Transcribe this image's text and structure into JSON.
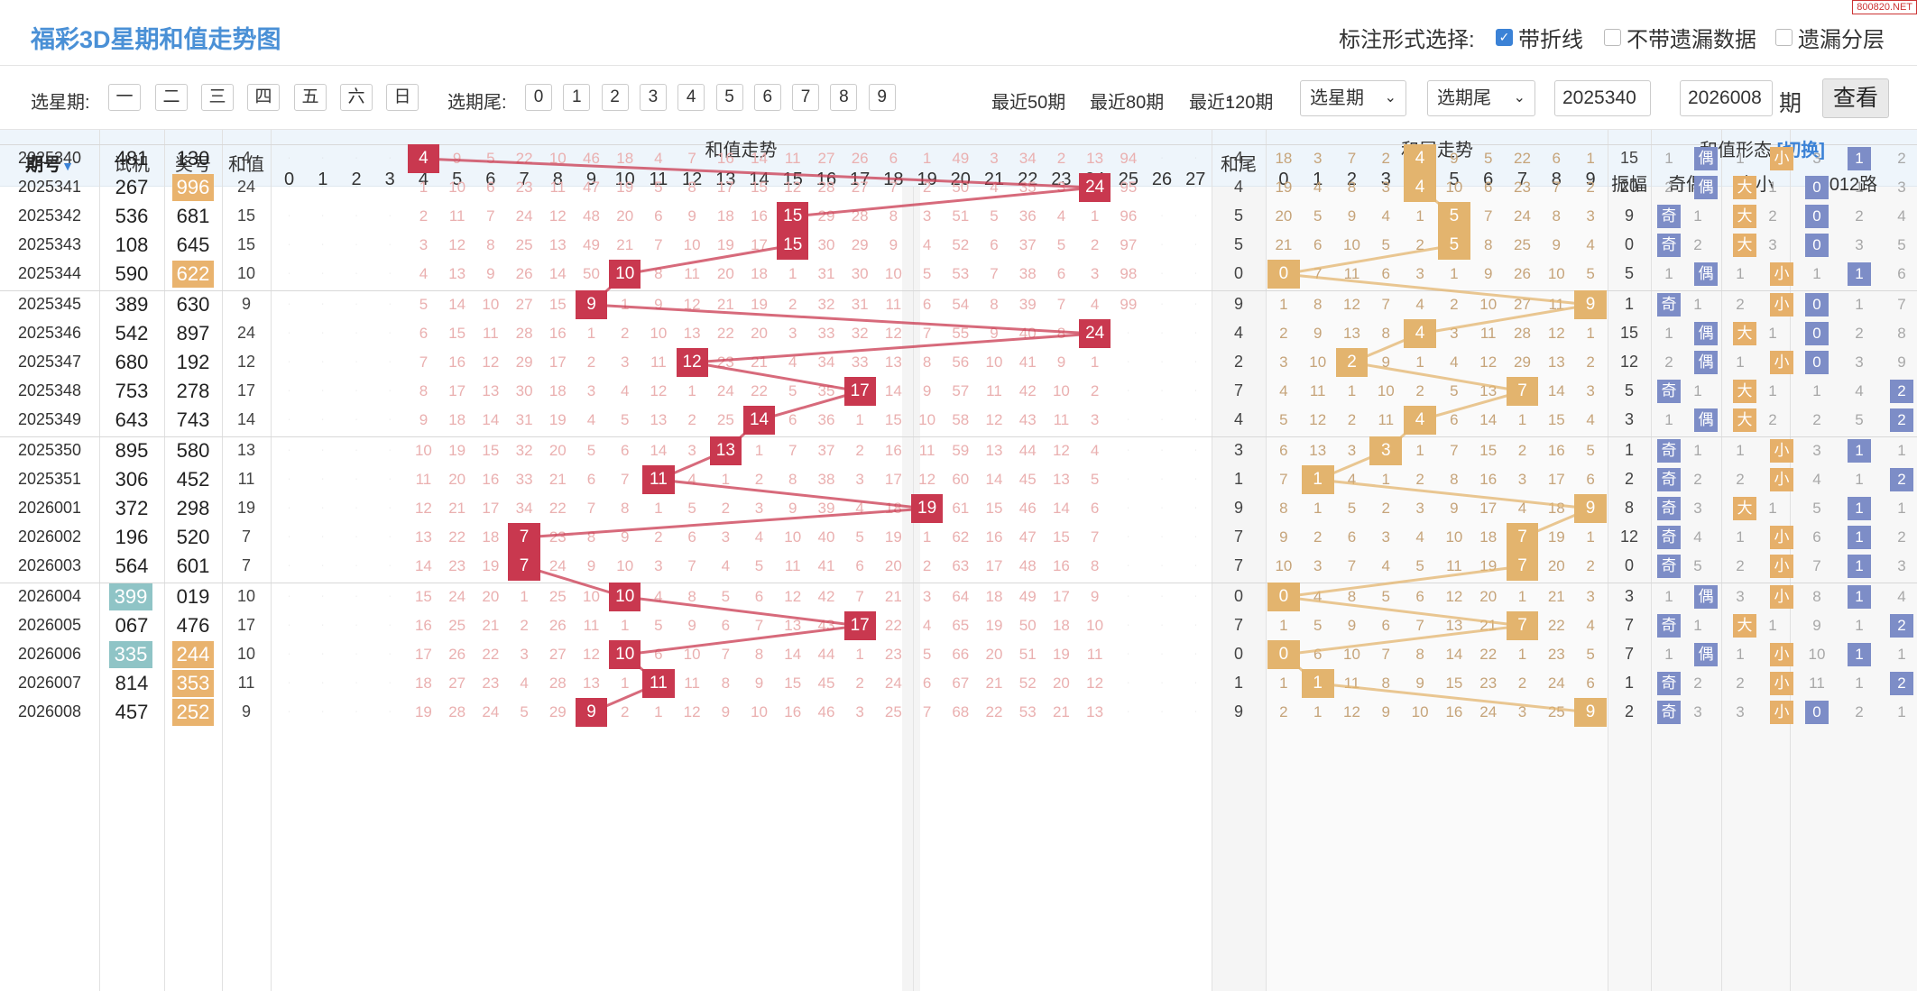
{
  "header": {
    "title": "福彩3D星期和值走势图",
    "option_label": "标注形式选择:",
    "options": [
      {
        "label": "带折线",
        "checked": true
      },
      {
        "label": "不带遗漏数据",
        "checked": false
      },
      {
        "label": "遗漏分层",
        "checked": false
      }
    ],
    "badge": "800820.NET"
  },
  "toolbar": {
    "week_label": "选星期:",
    "weekdays": [
      "一",
      "二",
      "三",
      "四",
      "五",
      "六",
      "日"
    ],
    "tail_label": "选期尾:",
    "tails": [
      "0",
      "1",
      "2",
      "3",
      "4",
      "5",
      "6",
      "7",
      "8",
      "9"
    ],
    "recent": [
      "最近50期",
      "最近80期",
      "最近120期"
    ],
    "select_week": "选星期",
    "select_tail": "选期尾",
    "start": "2025340",
    "dash": "-",
    "end": "2026008",
    "period": "期",
    "query": "查看"
  },
  "columns": {
    "period": "期号",
    "trial": "试机",
    "draw": "奖号",
    "sum": "和值",
    "sum_trend": "和值走势",
    "tail": "和尾",
    "tail_trend": "和尾走势",
    "form": "和值形态",
    "switch": "[切换]",
    "amp": "振幅",
    "odd_even": "奇偶",
    "big_small": "大小",
    "route": "012路",
    "sum_labels": [
      "0",
      "1",
      "2",
      "3",
      "4",
      "5",
      "6",
      "7",
      "8",
      "9",
      "10",
      "11",
      "12",
      "13",
      "14",
      "15",
      "16",
      "17",
      "18",
      "19",
      "20",
      "21",
      "22",
      "23",
      "24",
      "25",
      "26",
      "27"
    ],
    "tail_labels": [
      "0",
      "1",
      "2",
      "3",
      "4",
      "5",
      "6",
      "7",
      "8",
      "9"
    ]
  },
  "colors": {
    "red": "#c9384f",
    "orange": "#e3b46e",
    "blue": "#7d8dc7",
    "teal": "#8fc4c6"
  },
  "rows": [
    {
      "period": "2025340",
      "trial": "481",
      "draw": "130",
      "sum": 4,
      "tail": 4,
      "amp": 15,
      "oe": "偶",
      "oe_miss": 1,
      "bs": "小",
      "bs_miss": 1,
      "route": 1,
      "route_miss": [
        3,
        null,
        2
      ],
      "trial_hl": "",
      "draw_hl": "",
      "sum_miss": [
        " ",
        " ",
        " ",
        " ",
        null,
        "9",
        "5",
        "22",
        "10",
        "46",
        "18",
        "4",
        "7",
        "16",
        "14",
        "11",
        "27",
        "26",
        "6",
        "1",
        "49",
        "3",
        "34",
        "2",
        "13",
        "94",
        " ",
        " "
      ],
      "tail_miss": [
        "18",
        "3",
        "7",
        "2",
        null,
        "9",
        "5",
        "22",
        "6",
        "1"
      ]
    },
    {
      "period": "2025341",
      "trial": "267",
      "draw": "996",
      "sum": 24,
      "tail": 4,
      "amp": 20,
      "oe": "偶",
      "oe_miss": 2,
      "bs": "大",
      "bs_miss": 1,
      "route": 0,
      "route_miss": [
        null,
        1,
        3
      ],
      "trial_hl": "",
      "draw_hl": "org",
      "sum_miss": [
        " ",
        " ",
        " ",
        " ",
        "1",
        "10",
        "6",
        "23",
        "11",
        "47",
        "19",
        "5",
        "8",
        "17",
        "15",
        "12",
        "28",
        "27",
        "7",
        "2",
        "50",
        "4",
        "35",
        "3",
        null,
        "95",
        " ",
        " "
      ],
      "tail_miss": [
        "19",
        "4",
        "8",
        "3",
        null,
        "10",
        "6",
        "23",
        "7",
        "2"
      ]
    },
    {
      "period": "2025342",
      "trial": "536",
      "draw": "681",
      "sum": 15,
      "tail": 5,
      "amp": 9,
      "oe": "奇",
      "oe_miss": 1,
      "bs": "大",
      "bs_miss": 2,
      "route": 0,
      "route_miss": [
        null,
        2,
        4
      ],
      "trial_hl": "",
      "draw_hl": "",
      "sum_miss": [
        " ",
        " ",
        " ",
        " ",
        "2",
        "11",
        "7",
        "24",
        "12",
        "48",
        "20",
        "6",
        "9",
        "18",
        "16",
        null,
        "29",
        "28",
        "8",
        "3",
        "51",
        "5",
        "36",
        "4",
        "1",
        "96",
        " ",
        " "
      ],
      "tail_miss": [
        "20",
        "5",
        "9",
        "4",
        "1",
        null,
        "7",
        "24",
        "8",
        "3"
      ]
    },
    {
      "period": "2025343",
      "trial": "108",
      "draw": "645",
      "sum": 15,
      "tail": 5,
      "amp": 0,
      "oe": "奇",
      "oe_miss": 2,
      "bs": "大",
      "bs_miss": 3,
      "route": 0,
      "route_miss": [
        null,
        3,
        5
      ],
      "trial_hl": "",
      "draw_hl": "",
      "sum_miss": [
        " ",
        " ",
        " ",
        " ",
        "3",
        "12",
        "8",
        "25",
        "13",
        "49",
        "21",
        "7",
        "10",
        "19",
        "17",
        null,
        "30",
        "29",
        "9",
        "4",
        "52",
        "6",
        "37",
        "5",
        "2",
        "97",
        " ",
        " "
      ],
      "tail_miss": [
        "21",
        "6",
        "10",
        "5",
        "2",
        null,
        "8",
        "25",
        "9",
        "4"
      ]
    },
    {
      "period": "2025344",
      "trial": "590",
      "draw": "622",
      "sum": 10,
      "tail": 0,
      "amp": 5,
      "oe": "偶",
      "oe_miss": 1,
      "bs": "小",
      "bs_miss": 1,
      "route": 1,
      "route_miss": [
        1,
        null,
        6
      ],
      "trial_hl": "",
      "draw_hl": "org",
      "sum_miss": [
        " ",
        " ",
        " ",
        " ",
        "4",
        "13",
        "9",
        "26",
        "14",
        "50",
        null,
        "8",
        "11",
        "20",
        "18",
        "1",
        "31",
        "30",
        "10",
        "5",
        "53",
        "7",
        "38",
        "6",
        "3",
        "98",
        " ",
        " "
      ],
      "tail_miss": [
        null,
        "7",
        "11",
        "6",
        "3",
        "1",
        "9",
        "26",
        "10",
        "5"
      ]
    },
    {
      "period": "2025345",
      "trial": "389",
      "draw": "630",
      "sum": 9,
      "tail": 9,
      "amp": 1,
      "oe": "奇",
      "oe_miss": 1,
      "bs": "小",
      "bs_miss": 2,
      "route": 0,
      "route_miss": [
        null,
        1,
        7
      ],
      "trial_hl": "",
      "draw_hl": "",
      "sum_miss": [
        " ",
        " ",
        " ",
        " ",
        "5",
        "14",
        "10",
        "27",
        "15",
        null,
        "1",
        "9",
        "12",
        "21",
        "19",
        "2",
        "32",
        "31",
        "11",
        "6",
        "54",
        "8",
        "39",
        "7",
        "4",
        "99",
        " ",
        " "
      ],
      "tail_miss": [
        "1",
        "8",
        "12",
        "7",
        "4",
        "2",
        "10",
        "27",
        "11",
        null
      ]
    },
    {
      "period": "2025346",
      "trial": "542",
      "draw": "897",
      "sum": 24,
      "tail": 4,
      "amp": 15,
      "oe": "偶",
      "oe_miss": 1,
      "bs": "大",
      "bs_miss": 1,
      "route": 0,
      "route_miss": [
        null,
        2,
        8
      ],
      "trial_hl": "",
      "draw_hl": "",
      "sum_miss": [
        " ",
        " ",
        " ",
        " ",
        "6",
        "15",
        "11",
        "28",
        "16",
        "1",
        "2",
        "10",
        "13",
        "22",
        "20",
        "3",
        "33",
        "32",
        "12",
        "7",
        "55",
        "9",
        "40",
        "8",
        null,
        " ",
        " ",
        " "
      ],
      "tail_miss": [
        "2",
        "9",
        "13",
        "8",
        null,
        "3",
        "11",
        "28",
        "12",
        "1"
      ]
    },
    {
      "period": "2025347",
      "trial": "680",
      "draw": "192",
      "sum": 12,
      "tail": 2,
      "amp": 12,
      "oe": "偶",
      "oe_miss": 2,
      "bs": "小",
      "bs_miss": 1,
      "route": 0,
      "route_miss": [
        null,
        3,
        9
      ],
      "trial_hl": "",
      "draw_hl": "",
      "sum_miss": [
        " ",
        " ",
        " ",
        " ",
        "7",
        "16",
        "12",
        "29",
        "17",
        "2",
        "3",
        "11",
        null,
        "23",
        "21",
        "4",
        "34",
        "33",
        "13",
        "8",
        "56",
        "10",
        "41",
        "9",
        "1",
        " ",
        " ",
        " "
      ],
      "tail_miss": [
        "3",
        "10",
        null,
        "9",
        "1",
        "4",
        "12",
        "29",
        "13",
        "2"
      ]
    },
    {
      "period": "2025348",
      "trial": "753",
      "draw": "278",
      "sum": 17,
      "tail": 7,
      "amp": 5,
      "oe": "奇",
      "oe_miss": 1,
      "bs": "大",
      "bs_miss": 1,
      "route": 2,
      "route_miss": [
        1,
        4,
        null
      ],
      "trial_hl": "",
      "draw_hl": "",
      "sum_miss": [
        " ",
        " ",
        " ",
        " ",
        "8",
        "17",
        "13",
        "30",
        "18",
        "3",
        "4",
        "12",
        "1",
        "24",
        "22",
        "5",
        "35",
        null,
        "14",
        "9",
        "57",
        "11",
        "42",
        "10",
        "2",
        " ",
        " ",
        " "
      ],
      "tail_miss": [
        "4",
        "11",
        "1",
        "10",
        "2",
        "5",
        "13",
        null,
        "14",
        "3"
      ]
    },
    {
      "period": "2025349",
      "trial": "643",
      "draw": "743",
      "sum": 14,
      "tail": 4,
      "amp": 3,
      "oe": "偶",
      "oe_miss": 1,
      "bs": "大",
      "bs_miss": 2,
      "route": 2,
      "route_miss": [
        2,
        5,
        null
      ],
      "trial_hl": "",
      "draw_hl": "",
      "sum_miss": [
        " ",
        " ",
        " ",
        " ",
        "9",
        "18",
        "14",
        "31",
        "19",
        "4",
        "5",
        "13",
        "2",
        "25",
        null,
        "6",
        "36",
        "1",
        "15",
        "10",
        "58",
        "12",
        "43",
        "11",
        "3",
        " ",
        " ",
        " "
      ],
      "tail_miss": [
        "5",
        "12",
        "2",
        "11",
        null,
        "6",
        "14",
        "1",
        "15",
        "4"
      ]
    },
    {
      "period": "2025350",
      "trial": "895",
      "draw": "580",
      "sum": 13,
      "tail": 3,
      "amp": 1,
      "oe": "奇",
      "oe_miss": 1,
      "bs": "小",
      "bs_miss": 1,
      "route": 1,
      "route_miss": [
        3,
        null,
        1
      ],
      "trial_hl": "",
      "draw_hl": "",
      "sum_miss": [
        " ",
        " ",
        " ",
        " ",
        "10",
        "19",
        "15",
        "32",
        "20",
        "5",
        "6",
        "14",
        "3",
        null,
        "1",
        "7",
        "37",
        "2",
        "16",
        "11",
        "59",
        "13",
        "44",
        "12",
        "4",
        " ",
        " ",
        " "
      ],
      "tail_miss": [
        "6",
        "13",
        "3",
        null,
        "1",
        "7",
        "15",
        "2",
        "16",
        "5"
      ]
    },
    {
      "period": "2025351",
      "trial": "306",
      "draw": "452",
      "sum": 11,
      "tail": 1,
      "amp": 2,
      "oe": "奇",
      "oe_miss": 2,
      "bs": "小",
      "bs_miss": 2,
      "route": 2,
      "route_miss": [
        4,
        1,
        null
      ],
      "trial_hl": "",
      "draw_hl": "",
      "sum_miss": [
        " ",
        " ",
        " ",
        " ",
        "11",
        "20",
        "16",
        "33",
        "21",
        "6",
        "7",
        null,
        "4",
        "1",
        "2",
        "8",
        "38",
        "3",
        "17",
        "12",
        "60",
        "14",
        "45",
        "13",
        "5",
        " ",
        " ",
        " "
      ],
      "tail_miss": [
        "7",
        null,
        "4",
        "1",
        "2",
        "8",
        "16",
        "3",
        "17",
        "6"
      ]
    },
    {
      "period": "2026001",
      "trial": "372",
      "draw": "298",
      "sum": 19,
      "tail": 9,
      "amp": 8,
      "oe": "奇",
      "oe_miss": 3,
      "bs": "大",
      "bs_miss": 1,
      "route": 1,
      "route_miss": [
        5,
        null,
        1
      ],
      "trial_hl": "",
      "draw_hl": "",
      "sum_miss": [
        " ",
        " ",
        " ",
        " ",
        "12",
        "21",
        "17",
        "34",
        "22",
        "7",
        "8",
        "1",
        "5",
        "2",
        "3",
        "9",
        "39",
        "4",
        "18",
        null,
        "61",
        "15",
        "46",
        "14",
        "6",
        " ",
        " ",
        " "
      ],
      "tail_miss": [
        "8",
        "1",
        "5",
        "2",
        "3",
        "9",
        "17",
        "4",
        "18",
        null
      ]
    },
    {
      "period": "2026002",
      "trial": "196",
      "draw": "520",
      "sum": 7,
      "tail": 7,
      "amp": 12,
      "oe": "奇",
      "oe_miss": 4,
      "bs": "小",
      "bs_miss": 1,
      "route": 1,
      "route_miss": [
        6,
        null,
        2
      ],
      "trial_hl": "",
      "draw_hl": "",
      "sum_miss": [
        " ",
        " ",
        " ",
        " ",
        "13",
        "22",
        "18",
        null,
        "23",
        "8",
        "9",
        "2",
        "6",
        "3",
        "4",
        "10",
        "40",
        "5",
        "19",
        "1",
        "62",
        "16",
        "47",
        "15",
        "7",
        " ",
        " ",
        " "
      ],
      "tail_miss": [
        "9",
        "2",
        "6",
        "3",
        "4",
        "10",
        "18",
        null,
        "19",
        "1"
      ]
    },
    {
      "period": "2026003",
      "trial": "564",
      "draw": "601",
      "sum": 7,
      "tail": 7,
      "amp": 0,
      "oe": "奇",
      "oe_miss": 5,
      "bs": "小",
      "bs_miss": 2,
      "route": 1,
      "route_miss": [
        7,
        null,
        3
      ],
      "trial_hl": "",
      "draw_hl": "",
      "sum_miss": [
        " ",
        " ",
        " ",
        " ",
        "14",
        "23",
        "19",
        null,
        "24",
        "9",
        "10",
        "3",
        "7",
        "4",
        "5",
        "11",
        "41",
        "6",
        "20",
        "2",
        "63",
        "17",
        "48",
        "16",
        "8",
        " ",
        " ",
        " "
      ],
      "tail_miss": [
        "10",
        "3",
        "7",
        "4",
        "5",
        "11",
        "19",
        null,
        "20",
        "2"
      ]
    },
    {
      "period": "2026004",
      "trial": "399",
      "draw": "019",
      "sum": 10,
      "tail": 0,
      "amp": 3,
      "oe": "偶",
      "oe_miss": 1,
      "bs": "小",
      "bs_miss": 3,
      "route": 1,
      "route_miss": [
        8,
        null,
        4
      ],
      "trial_hl": "teal",
      "draw_hl": "",
      "sum_miss": [
        " ",
        " ",
        " ",
        " ",
        "15",
        "24",
        "20",
        "1",
        "25",
        "10",
        null,
        "4",
        "8",
        "5",
        "6",
        "12",
        "42",
        "7",
        "21",
        "3",
        "64",
        "18",
        "49",
        "17",
        "9",
        " ",
        " ",
        " "
      ],
      "tail_miss": [
        null,
        "4",
        "8",
        "5",
        "6",
        "12",
        "20",
        "1",
        "21",
        "3"
      ]
    },
    {
      "period": "2026005",
      "trial": "067",
      "draw": "476",
      "sum": 17,
      "tail": 7,
      "amp": 7,
      "oe": "奇",
      "oe_miss": 1,
      "bs": "大",
      "bs_miss": 1,
      "route": 2,
      "route_miss": [
        9,
        1,
        null
      ],
      "trial_hl": "",
      "draw_hl": "",
      "sum_miss": [
        " ",
        " ",
        " ",
        " ",
        "16",
        "25",
        "21",
        "2",
        "26",
        "11",
        "1",
        "5",
        "9",
        "6",
        "7",
        "13",
        "43",
        null,
        "22",
        "4",
        "65",
        "19",
        "50",
        "18",
        "10",
        " ",
        " ",
        " "
      ],
      "tail_miss": [
        "1",
        "5",
        "9",
        "6",
        "7",
        "13",
        "21",
        null,
        "22",
        "4"
      ]
    },
    {
      "period": "2026006",
      "trial": "335",
      "draw": "244",
      "sum": 10,
      "tail": 0,
      "amp": 7,
      "oe": "偶",
      "oe_miss": 1,
      "bs": "小",
      "bs_miss": 1,
      "route": 1,
      "route_miss": [
        10,
        null,
        1
      ],
      "trial_hl": "teal",
      "draw_hl": "org",
      "sum_miss": [
        " ",
        " ",
        " ",
        " ",
        "17",
        "26",
        "22",
        "3",
        "27",
        "12",
        null,
        "6",
        "10",
        "7",
        "8",
        "14",
        "44",
        "1",
        "23",
        "5",
        "66",
        "20",
        "51",
        "19",
        "11",
        " ",
        " ",
        " "
      ],
      "tail_miss": [
        null,
        "6",
        "10",
        "7",
        "8",
        "14",
        "22",
        "1",
        "23",
        "5"
      ]
    },
    {
      "period": "2026007",
      "trial": "814",
      "draw": "353",
      "sum": 11,
      "tail": 1,
      "amp": 1,
      "oe": "奇",
      "oe_miss": 2,
      "bs": "小",
      "bs_miss": 2,
      "route": 2,
      "route_miss": [
        11,
        1,
        null
      ],
      "trial_hl": "",
      "draw_hl": "org",
      "sum_miss": [
        " ",
        " ",
        " ",
        " ",
        "18",
        "27",
        "23",
        "4",
        "28",
        "13",
        "1",
        null,
        "11",
        "8",
        "9",
        "15",
        "45",
        "2",
        "24",
        "6",
        "67",
        "21",
        "52",
        "20",
        "12",
        " ",
        " ",
        " "
      ],
      "tail_miss": [
        "1",
        null,
        "11",
        "8",
        "9",
        "15",
        "23",
        "2",
        "24",
        "6"
      ]
    },
    {
      "period": "2026008",
      "trial": "457",
      "draw": "252",
      "sum": 9,
      "tail": 9,
      "amp": 2,
      "oe": "奇",
      "oe_miss": 3,
      "bs": "小",
      "bs_miss": 3,
      "route": 0,
      "route_miss": [
        null,
        2,
        1
      ],
      "trial_hl": "",
      "draw_hl": "org",
      "sum_miss": [
        " ",
        " ",
        " ",
        " ",
        "19",
        "28",
        "24",
        "5",
        "29",
        null,
        "2",
        "1",
        "12",
        "9",
        "10",
        "16",
        "46",
        "3",
        "25",
        "7",
        "68",
        "22",
        "53",
        "21",
        "13",
        " ",
        " ",
        " "
      ],
      "tail_miss": [
        "2",
        "1",
        "12",
        "9",
        "10",
        "16",
        "24",
        "3",
        "25",
        null
      ]
    }
  ]
}
